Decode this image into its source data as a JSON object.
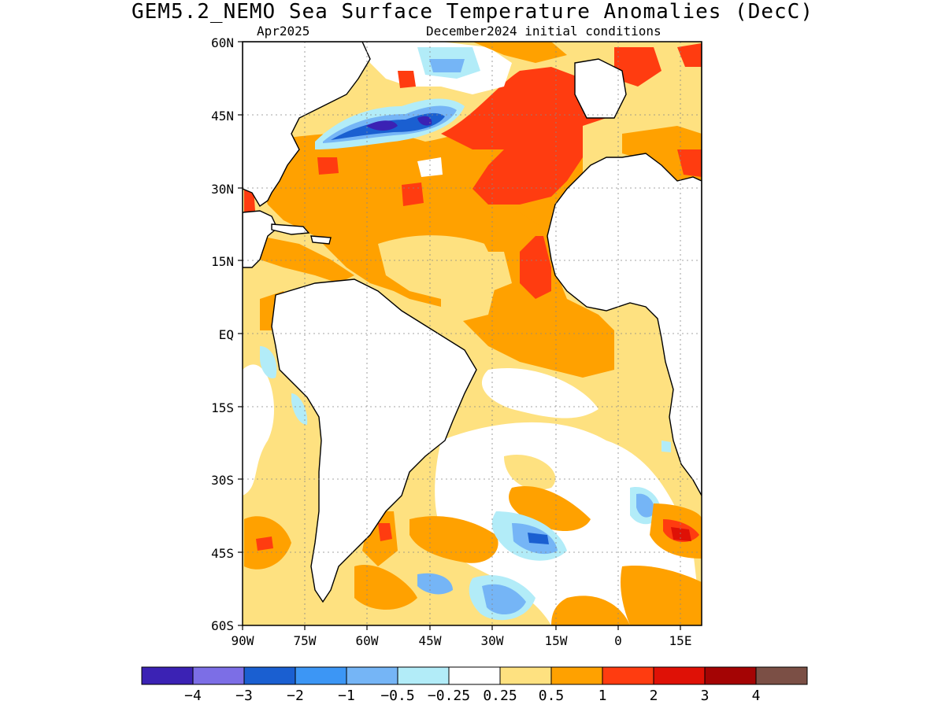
{
  "title": "GEM5.2_NEMO Sea Surface Temperature Anomalies (DecC)",
  "subtitle_left": "Apr2025",
  "subtitle_right": "December2024 initial conditions",
  "lat_labels": [
    "60N",
    "45N",
    "30N",
    "15N",
    "EQ",
    "15S",
    "30S",
    "45S",
    "60S"
  ],
  "lon_labels": [
    "90W",
    "75W",
    "60W",
    "45W",
    "30W",
    "15W",
    "0",
    "15E"
  ],
  "colorbar": {
    "colors": [
      "#3b22b4",
      "#7c6ee6",
      "#1a5fd1",
      "#3c96f5",
      "#75b5f6",
      "#b2ecf8",
      "#ffffff",
      "#fee180",
      "#ffa100",
      "#ff3c10",
      "#df1106",
      "#a40404",
      "#7b4f45"
    ],
    "labels": [
      "−4",
      "−3",
      "−2",
      "−1",
      "−0.5",
      "−0.25",
      "0.25",
      "0.5",
      "1",
      "2",
      "3",
      "4"
    ]
  }
}
